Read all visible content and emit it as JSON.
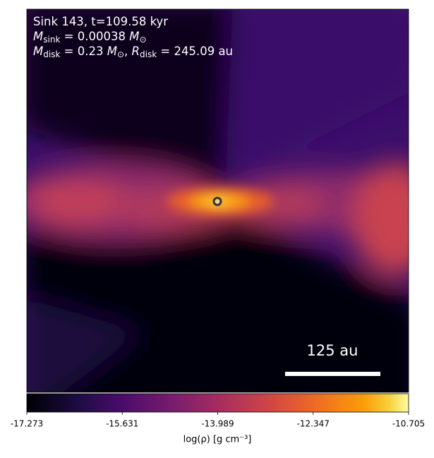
{
  "chart_data": {
    "type": "image",
    "annotations": [
      [
        "Sink 143, t=109.58 kyr"
      ],
      [
        {
          "text": "M",
          "sub": "sink"
        },
        " = 0.00038 ",
        {
          "text": "M",
          "sub": "⊙"
        }
      ],
      [
        {
          "text": "M",
          "sub": "disk"
        },
        " = 0.23 ",
        {
          "text": "M",
          "sub": "⊙"
        },
        ", ",
        {
          "text": "R",
          "sub": "disk"
        },
        " = 245.09 au"
      ]
    ],
    "scale_bar": "125 au",
    "colorbar": {
      "label": "log(ρ) [g cm⁻³]",
      "lim": [
        -17.273,
        -10.705
      ],
      "ticks": [
        -17.273,
        -15.631,
        -13.989,
        -12.347,
        -10.705
      ]
    }
  }
}
